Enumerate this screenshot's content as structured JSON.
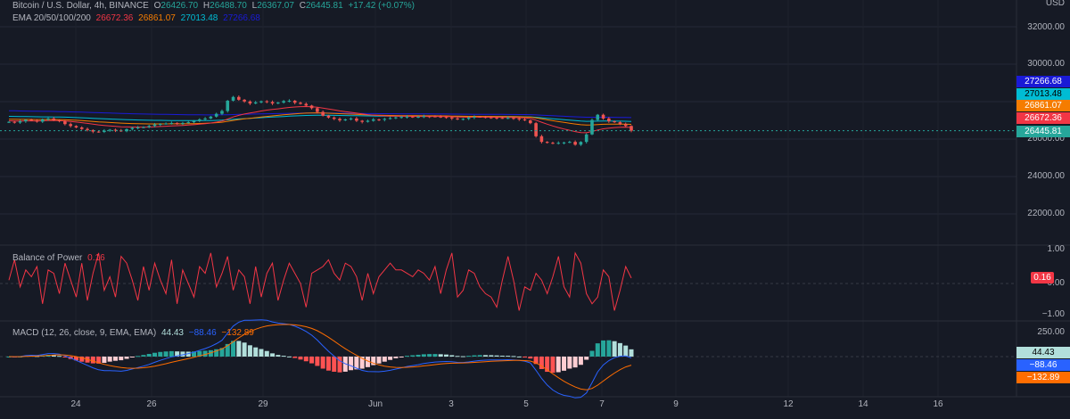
{
  "header": {
    "symbol": "Bitcoin / U.S. Dollar, 4h, BINANCE",
    "open_label": "O",
    "open": "26426.70",
    "high_label": "H",
    "high": "26488.70",
    "low_label": "L",
    "low": "26367.07",
    "close_label": "C",
    "close": "26445.81",
    "change": "+17.42 (+0.07%)",
    "currency": "USD"
  },
  "ema_legend": {
    "label": "EMA 20/50/100/200",
    "v20": "26672.36",
    "v50": "26861.07",
    "v100": "27013.48",
    "v200": "27266.68"
  },
  "bop_legend": {
    "label": "Balance of Power",
    "value": "0.16"
  },
  "macd_legend": {
    "label": "MACD (12, 26, close, 9, EMA, EMA)",
    "hist": "44.43",
    "macd": "−88.46",
    "signal": "−132.89"
  },
  "price_axis": [
    "32000.00",
    "30000.00",
    "26000.00",
    "24000.00",
    "22000.00"
  ],
  "price_tags": {
    "ema200": "27266.68",
    "ema100": "27013.48",
    "ema50": "26861.07",
    "ema20": "26672.36",
    "last": "26445.81"
  },
  "bop_axis": [
    "1.00",
    "0.00",
    "−1.00"
  ],
  "bop_tag": "0.16",
  "macd_axis": [
    "250.00"
  ],
  "macd_tags": {
    "hist": "44.43",
    "macd": "−88.46",
    "signal": "−132.89"
  },
  "time_axis": [
    "24",
    "26",
    "29",
    "Jun",
    "3",
    "5",
    "7",
    "9",
    "12",
    "14",
    "16"
  ],
  "colors": {
    "background": "#161a25",
    "up": "#26a69a",
    "down": "#ef5350",
    "ema20": "#f23645",
    "ema50": "#f57c00",
    "ema100": "#00bcd4",
    "ema200": "#1a1ad6",
    "macd_line": "#2962ff",
    "signal_line": "#ff6d00",
    "bop_line": "#f23645"
  },
  "chart_data": [
    {
      "type": "candlestick",
      "title": "Bitcoin / U.S. Dollar, 4h, BINANCE",
      "ylim": [
        21000,
        33000
      ],
      "x_ticks": [
        "24",
        "26",
        "29",
        "Jun",
        "3",
        "5",
        "7",
        "9",
        "12",
        "14",
        "16"
      ],
      "close_series": [
        26920,
        26880,
        26950,
        27030,
        26990,
        26930,
        27060,
        27100,
        27000,
        26950,
        26800,
        26700,
        26620,
        26540,
        26480,
        26400,
        26380,
        26450,
        26500,
        26460,
        26420,
        26530,
        26600,
        26620,
        26640,
        26700,
        26780,
        26810,
        26830,
        26860,
        26830,
        26860,
        26900,
        26970,
        27050,
        27100,
        27200,
        27350,
        27500,
        28050,
        28250,
        28100,
        28010,
        27900,
        27960,
        28020,
        27980,
        27900,
        27950,
        28030,
        28050,
        27940,
        27880,
        27790,
        27650,
        27450,
        27250,
        27150,
        27080,
        27000,
        27050,
        27100,
        26980,
        26920,
        26980,
        27050,
        27030,
        27080,
        27120,
        27160,
        27180,
        27200,
        27170,
        27190,
        27220,
        27210,
        27200,
        27180,
        27160,
        27100,
        27050,
        27080,
        27150,
        27190,
        27180,
        27160,
        27150,
        27130,
        27120,
        27130,
        27100,
        27050,
        27000,
        26850,
        26150,
        25850,
        25800,
        25780,
        25800,
        25820,
        25850,
        25700,
        25850,
        26250,
        27020,
        27300,
        27100,
        26950,
        26900,
        26800,
        26700,
        26445.81
      ],
      "ema": [
        {
          "name": "EMA 20",
          "last": 26672.36
        },
        {
          "name": "EMA 50",
          "last": 26861.07
        },
        {
          "name": "EMA 100",
          "last": 27013.48
        },
        {
          "name": "EMA 200",
          "last": 27266.68
        }
      ]
    },
    {
      "type": "line",
      "title": "Balance of Power",
      "ylim": [
        -1,
        1
      ],
      "y_ticks": [
        "1.00",
        "0.00",
        "−1.00"
      ],
      "series": [
        {
          "name": "Balance of Power",
          "values": [
            0.1,
            0.7,
            -0.1,
            0.4,
            0.2,
            0.5,
            -0.6,
            0.4,
            0.3,
            -0.3,
            0.6,
            0.1,
            -0.4,
            0.6,
            -0.5,
            0.3,
            0.9,
            -0.2,
            0.2,
            -0.4,
            0.8,
            0.6,
            0.1,
            -0.5,
            0.5,
            -0.2,
            0.6,
            0.1,
            -0.3,
            0.7,
            -0.6,
            0.4,
            0.0,
            -0.4,
            0.5,
            0.3,
            0.9,
            -0.1,
            0.3,
            0.8,
            -0.2,
            0.4,
            0.2,
            -0.6,
            0.5,
            -0.4,
            0.3,
            0.6,
            -0.5,
            0.1,
            0.6,
            0.3,
            0.0,
            -0.7,
            0.3,
            0.4,
            0.5,
            0.7,
            0.3,
            0.1,
            0.6,
            0.5,
            0.2,
            -0.5,
            0.3,
            -0.3,
            0.2,
            0.4,
            0.6,
            0.4,
            0.4,
            0.3,
            0.2,
            0.4,
            0.3,
            0.1,
            0.5,
            -0.3,
            0.4,
            0.9,
            -0.4,
            -0.2,
            0.4,
            0.3,
            -0.1,
            -0.3,
            -0.4,
            -0.7,
            0.1,
            0.8,
            0.1,
            -0.8,
            -0.1,
            -0.2,
            0.3,
            0.1,
            -0.3,
            0.2,
            0.8,
            -0.1,
            -0.4,
            0.9,
            0.6,
            -0.3,
            -0.6,
            -0.4,
            0.4,
            0.2,
            -0.8,
            -0.2,
            0.5,
            0.16
          ]
        }
      ]
    },
    {
      "type": "bar",
      "title": "MACD (12, 26, close, 9, EMA, EMA)",
      "y_ticks": [
        "250.00"
      ],
      "series": [
        {
          "name": "Histogram",
          "last": 44.43
        },
        {
          "name": "MACD",
          "last": -88.46
        },
        {
          "name": "Signal",
          "last": -132.89
        }
      ]
    }
  ]
}
